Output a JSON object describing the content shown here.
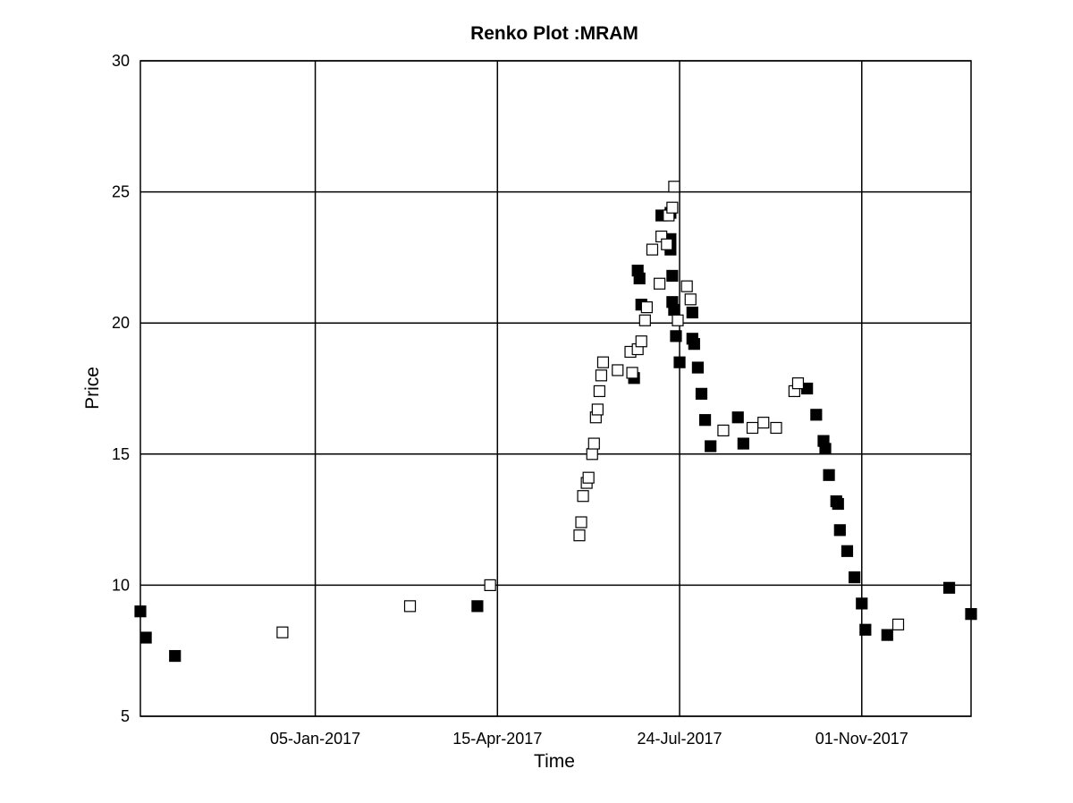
{
  "chart_data": {
    "type": "scatter",
    "title": "Renko Plot :MRAM",
    "xlabel": "Time",
    "ylabel": "Price",
    "ylim": [
      5,
      30
    ],
    "xlim": [
      "2016-10-01",
      "2017-12-31"
    ],
    "yticks": [
      5,
      10,
      15,
      20,
      25,
      30
    ],
    "xticks": [
      {
        "date": "2017-01-05",
        "label": "05-Jan-2017"
      },
      {
        "date": "2017-04-15",
        "label": "15-Apr-2017"
      },
      {
        "date": "2017-07-24",
        "label": "24-Jul-2017"
      },
      {
        "date": "2017-11-01",
        "label": "01-Nov-2017"
      }
    ],
    "grid": true,
    "series": [
      {
        "color": "#000000",
        "filled": true,
        "points": [
          [
            "2016-10-01",
            9.0
          ],
          [
            "2016-10-04",
            8.0
          ],
          [
            "2016-10-20",
            7.3
          ],
          [
            "2017-04-04",
            9.2
          ],
          [
            "2017-06-29",
            17.9
          ],
          [
            "2017-07-01",
            22.0
          ],
          [
            "2017-07-02",
            21.7
          ],
          [
            "2017-07-03",
            20.7
          ],
          [
            "2017-07-14",
            24.1
          ],
          [
            "2017-07-19",
            24.2
          ],
          [
            "2017-07-19",
            23.2
          ],
          [
            "2017-07-19",
            22.8
          ],
          [
            "2017-07-20",
            21.8
          ],
          [
            "2017-07-20",
            20.8
          ],
          [
            "2017-07-21",
            20.5
          ],
          [
            "2017-07-22",
            19.5
          ],
          [
            "2017-07-24",
            18.5
          ],
          [
            "2017-07-31",
            20.4
          ],
          [
            "2017-07-31",
            19.4
          ],
          [
            "2017-08-01",
            19.2
          ],
          [
            "2017-08-03",
            18.3
          ],
          [
            "2017-08-05",
            17.3
          ],
          [
            "2017-08-07",
            16.3
          ],
          [
            "2017-08-10",
            15.3
          ],
          [
            "2017-08-25",
            16.4
          ],
          [
            "2017-08-28",
            15.4
          ],
          [
            "2017-10-02",
            17.5
          ],
          [
            "2017-10-07",
            16.5
          ],
          [
            "2017-10-11",
            15.5
          ],
          [
            "2017-10-12",
            15.2
          ],
          [
            "2017-10-14",
            14.2
          ],
          [
            "2017-10-18",
            13.2
          ],
          [
            "2017-10-19",
            13.1
          ],
          [
            "2017-10-20",
            12.1
          ],
          [
            "2017-10-24",
            11.3
          ],
          [
            "2017-10-28",
            10.3
          ],
          [
            "2017-11-01",
            9.3
          ],
          [
            "2017-11-03",
            8.3
          ],
          [
            "2017-11-15",
            8.1
          ],
          [
            "2017-12-19",
            9.9
          ],
          [
            "2017-12-31",
            8.9
          ]
        ]
      },
      {
        "color": "#000000",
        "filled": false,
        "points": [
          [
            "2016-12-18",
            8.2
          ],
          [
            "2017-02-26",
            9.2
          ],
          [
            "2017-04-11",
            10.0
          ],
          [
            "2017-05-30",
            11.9
          ],
          [
            "2017-05-31",
            12.4
          ],
          [
            "2017-06-01",
            13.4
          ],
          [
            "2017-06-03",
            13.9
          ],
          [
            "2017-06-04",
            14.1
          ],
          [
            "2017-06-06",
            15.0
          ],
          [
            "2017-06-07",
            15.4
          ],
          [
            "2017-06-08",
            16.4
          ],
          [
            "2017-06-09",
            16.7
          ],
          [
            "2017-06-10",
            17.4
          ],
          [
            "2017-06-11",
            18.0
          ],
          [
            "2017-06-12",
            18.5
          ],
          [
            "2017-06-20",
            18.2
          ],
          [
            "2017-06-27",
            18.9
          ],
          [
            "2017-06-28",
            18.1
          ],
          [
            "2017-07-01",
            19.0
          ],
          [
            "2017-07-03",
            19.3
          ],
          [
            "2017-07-05",
            20.1
          ],
          [
            "2017-07-06",
            20.6
          ],
          [
            "2017-07-09",
            22.8
          ],
          [
            "2017-07-13",
            21.5
          ],
          [
            "2017-07-14",
            23.3
          ],
          [
            "2017-07-17",
            23.0
          ],
          [
            "2017-07-18",
            24.1
          ],
          [
            "2017-07-20",
            24.4
          ],
          [
            "2017-07-21",
            25.2
          ],
          [
            "2017-07-23",
            20.1
          ],
          [
            "2017-07-28",
            21.4
          ],
          [
            "2017-07-30",
            20.9
          ],
          [
            "2017-08-17",
            15.9
          ],
          [
            "2017-09-02",
            16.0
          ],
          [
            "2017-09-08",
            16.2
          ],
          [
            "2017-09-15",
            16.0
          ],
          [
            "2017-09-25",
            17.4
          ],
          [
            "2017-09-27",
            17.7
          ],
          [
            "2017-11-21",
            8.5
          ]
        ]
      }
    ]
  }
}
